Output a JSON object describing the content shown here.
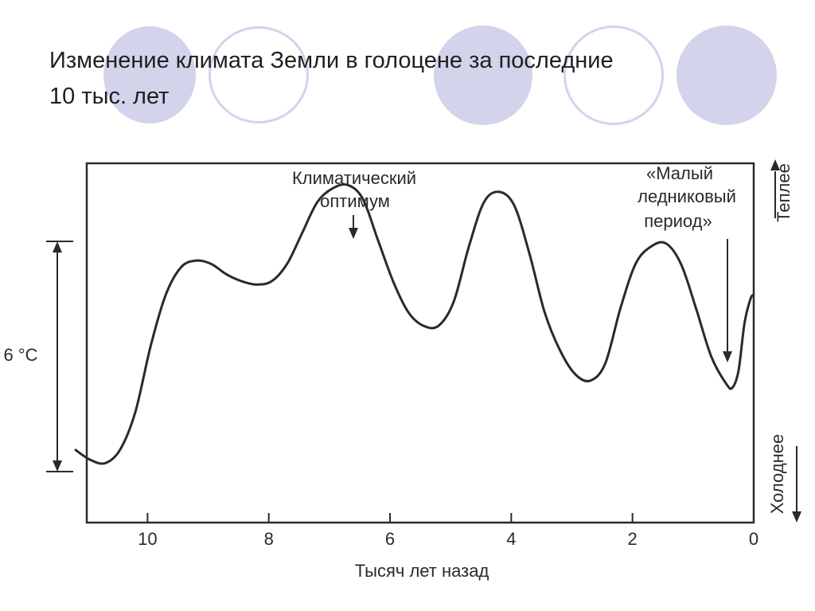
{
  "slide": {
    "title_line1": "Изменение климата Земли в голоцене за последние",
    "title_line2": "10 тыс. лет"
  },
  "chart_data": {
    "type": "line",
    "xlabel": "Тысяч лет назад",
    "x_reversed": true,
    "xlim": [
      11.2,
      0
    ],
    "x_ticks": [
      10,
      8,
      6,
      4,
      2,
      0
    ],
    "x_tick_labels": [
      "10",
      "8",
      "6",
      "4",
      "2",
      "0"
    ],
    "ylim": [
      0,
      10
    ],
    "y_scale_label": "6 °C",
    "y_direction_labels": {
      "up": "Теплее",
      "down": "Холоднее"
    },
    "grid": false,
    "series": [
      {
        "x": [
          11.2,
          10.95,
          10.7,
          10.45,
          10.2,
          9.95,
          9.7,
          9.45,
          9.2,
          8.95,
          8.7,
          8.45,
          8.2,
          7.95,
          7.7,
          7.45,
          7.2,
          6.95,
          6.7,
          6.45,
          6.2,
          5.95,
          5.7,
          5.45,
          5.2,
          4.95,
          4.7,
          4.45,
          4.2,
          3.95,
          3.7,
          3.45,
          3.2,
          2.95,
          2.7,
          2.45,
          2.2,
          1.95,
          1.7,
          1.45,
          1.2,
          0.95,
          0.7,
          0.45,
          0.35,
          0.25,
          0.15,
          0.05,
          0.0
        ],
        "y": [
          1.9,
          1.6,
          1.5,
          1.9,
          3.0,
          4.9,
          6.4,
          7.2,
          7.4,
          7.3,
          7.0,
          6.8,
          6.7,
          6.8,
          7.3,
          8.2,
          9.1,
          9.5,
          9.6,
          9.2,
          8.0,
          6.8,
          5.9,
          5.5,
          5.5,
          6.2,
          7.8,
          9.1,
          9.4,
          9.0,
          7.6,
          5.9,
          4.8,
          4.1,
          3.9,
          4.4,
          6.0,
          7.3,
          7.8,
          7.9,
          7.3,
          6.0,
          4.6,
          3.8,
          3.7,
          4.2,
          5.6,
          6.3,
          6.4
        ]
      }
    ],
    "annotations": [
      {
        "text_lines": [
          "Климатический",
          "оптимум"
        ],
        "x": 6.7,
        "y": 9.6
      },
      {
        "text_lines": [
          "«Малый",
          "ледниковый",
          "период»"
        ],
        "x": 0.4,
        "y": 3.7
      }
    ]
  }
}
